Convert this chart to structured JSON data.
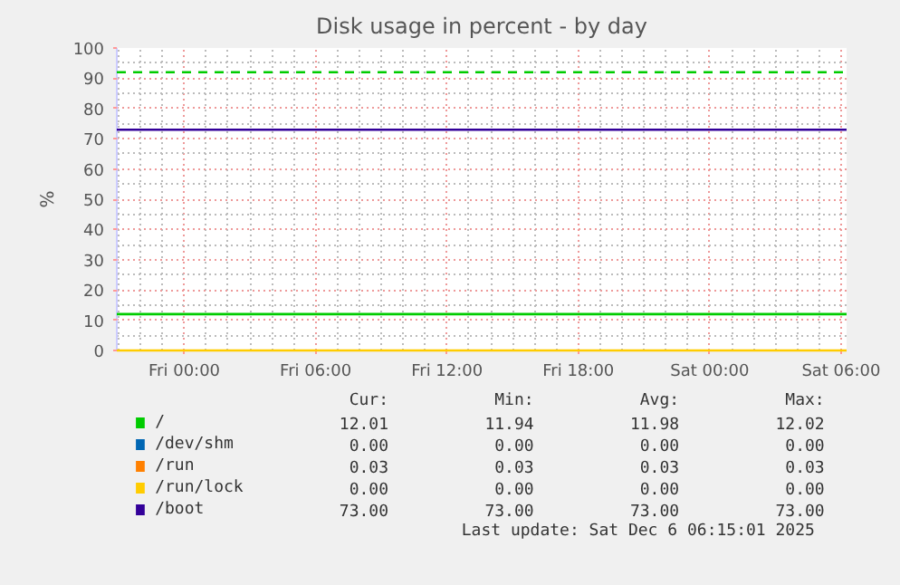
{
  "chart_data": {
    "type": "line",
    "title": "Disk usage in percent - by day",
    "ylabel": "%",
    "x": [
      "2025-12-04T20:55",
      "2025-12-06T06:15"
    ],
    "series": [
      {
        "name": "/",
        "color": "#00cc00",
        "values": [
          12,
          12
        ]
      },
      {
        "name": "/dev/shm",
        "color": "#0066b3",
        "values": [
          null,
          null
        ]
      },
      {
        "name": "/run",
        "color": "#ff8000",
        "values": [
          null,
          null
        ]
      },
      {
        "name": "/run/lock",
        "color": "#ffcc00",
        "values": [
          0,
          0
        ]
      },
      {
        "name": "/boot",
        "color": "#330099",
        "values": [
          73,
          73
        ]
      }
    ],
    "xlim": [
      "2025-12-04T20:55",
      "2025-12-06T06:15"
    ],
    "xticks": [
      {
        "value": "2025-12-05T00:00",
        "label": "Fri 00:00"
      },
      {
        "value": "2025-12-05T06:00",
        "label": "Fri 06:00"
      },
      {
        "value": "2025-12-05T12:00",
        "label": "Fri 12:00"
      },
      {
        "value": "2025-12-05T18:00",
        "label": "Fri 18:00"
      },
      {
        "value": "2025-12-06T00:00",
        "label": "Sat 00:00"
      },
      {
        "value": "2025-12-06T06:00",
        "label": "Sat 06:00"
      }
    ],
    "ylim": [
      0,
      100
    ],
    "yticks": [
      0,
      10,
      20,
      30,
      40,
      50,
      60,
      70,
      80,
      90,
      100
    ],
    "ref_lines": [
      {
        "axis": "y",
        "value": 92,
        "color": "#00cc00",
        "line_style": "dashed"
      }
    ],
    "grid": true,
    "legend": "bottom",
    "annotations": [
      "Cur:",
      "Min:",
      "Avg:",
      "Max:",
      "12.01",
      "11.94",
      "11.98",
      "12.02",
      "0.00",
      "0.00",
      "0.00",
      "0.00",
      "0.03",
      "0.03",
      "0.03",
      "0.03",
      "0.00",
      "0.00",
      "0.00",
      "0.00",
      "73.00",
      "73.00",
      "73.00",
      "73.00",
      "Last update: Sat Dec  6 06:15:01 2025"
    ]
  }
}
